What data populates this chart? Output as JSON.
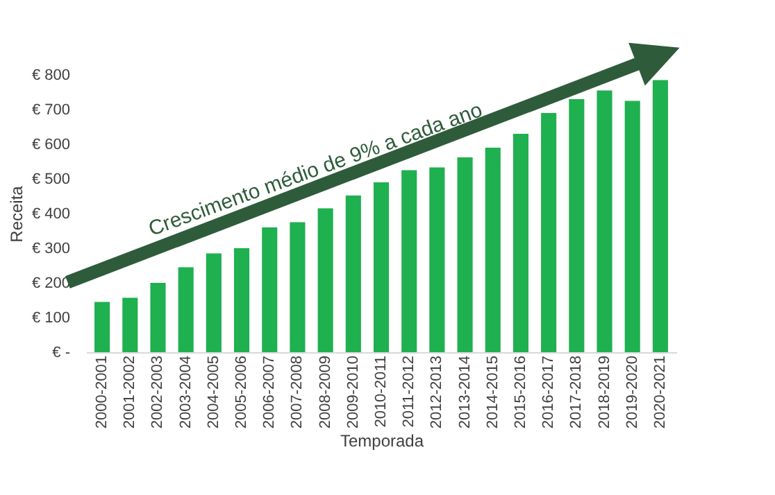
{
  "chart_data": {
    "type": "bar",
    "xlabel": "Temporada",
    "ylabel": "Receita",
    "categories": [
      "2000-2001",
      "2001-2002",
      "2002-2003",
      "2003-2004",
      "2004-2005",
      "2005-2006",
      "2006-2007",
      "2007-2008",
      "2008-2009",
      "2009-2010",
      "2010-2011",
      "2011-2012",
      "2012-2013",
      "2013-2014",
      "2014-2015",
      "2015-2016",
      "2016-2017",
      "2017-2018",
      "2018-2019",
      "2019-2020",
      "2020-2021"
    ],
    "values": [
      145,
      157,
      200,
      245,
      285,
      300,
      360,
      375,
      415,
      452,
      490,
      525,
      533,
      562,
      590,
      630,
      690,
      730,
      755,
      725,
      785
    ],
    "color": "#1fb04f",
    "ylim": [
      0,
      800
    ],
    "yticks": [
      {
        "value": 0,
        "label": "€ -"
      },
      {
        "value": 100,
        "label": "€ 100"
      },
      {
        "value": 200,
        "label": "€ 200"
      },
      {
        "value": 300,
        "label": "€ 300"
      },
      {
        "value": 400,
        "label": "€ 400"
      },
      {
        "value": 500,
        "label": "€ 500"
      },
      {
        "value": 600,
        "label": "€ 600"
      },
      {
        "value": 700,
        "label": "€ 700"
      },
      {
        "value": 800,
        "label": "€ 800"
      }
    ],
    "grid": false,
    "annotations": [
      "Crescimento médio de 9% a cada ano"
    ]
  }
}
